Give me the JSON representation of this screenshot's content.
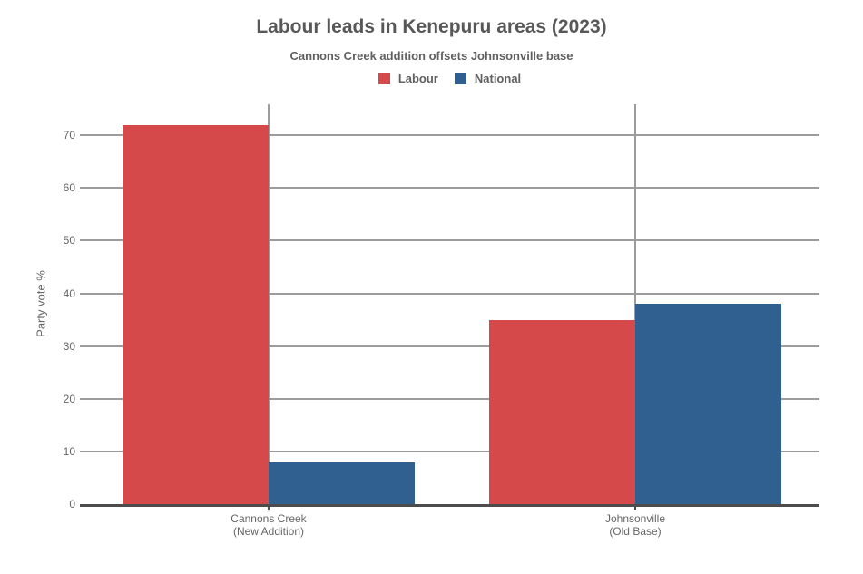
{
  "chart_data": {
    "type": "bar",
    "title": "Labour leads in Kenepuru areas (2023)",
    "subtitle": "Cannons Creek addition offsets Johnsonville base",
    "ylabel": "Party vote %",
    "xlabel": "",
    "ylim": [
      0,
      75.9
    ],
    "yticks": [
      0,
      10,
      20,
      30,
      40,
      50,
      60,
      70
    ],
    "grid": true,
    "legend_position": "top",
    "categories": [
      {
        "label": "Cannons Creek",
        "sublabel": "(New Addition)"
      },
      {
        "label": "Johnsonville",
        "sublabel": "(Old Base)"
      }
    ],
    "series": [
      {
        "name": "Labour",
        "color": "#d6494a",
        "values": [
          72,
          35
        ]
      },
      {
        "name": "National",
        "color": "#30608f",
        "values": [
          8,
          38
        ]
      }
    ],
    "colors": {
      "grid": "#9c9c9c",
      "axis": "#4c4c4c",
      "title": "#585858",
      "subtitle": "#606060",
      "tick": "#666666"
    }
  }
}
